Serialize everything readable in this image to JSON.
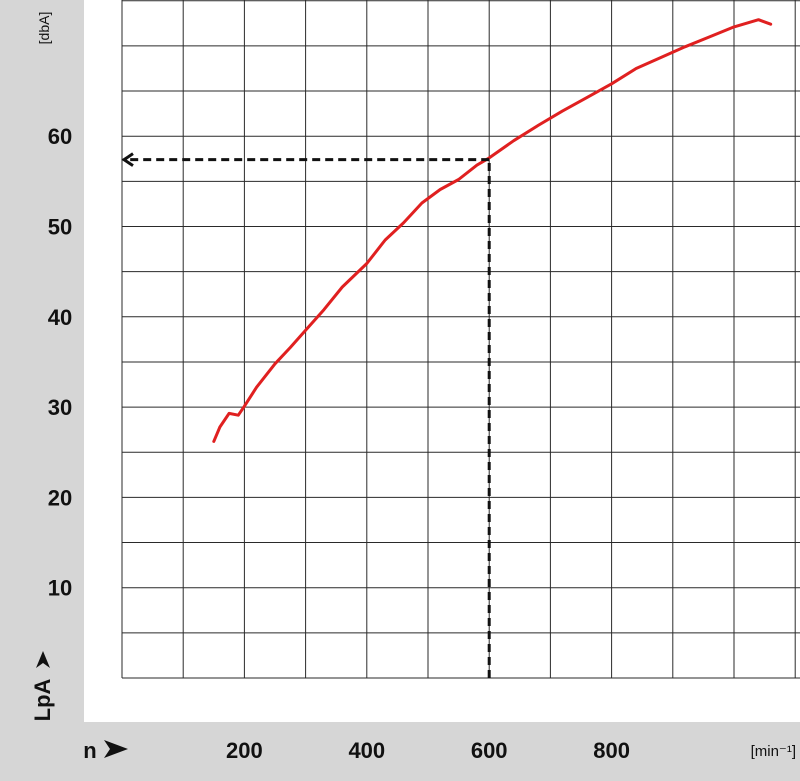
{
  "chart_data": {
    "type": "line",
    "title": "",
    "xlabel": "n",
    "ylabel": "LpA",
    "x_unit": "[min⁻¹]",
    "y_unit": "[dbA]",
    "xlim": [
      0,
      1100
    ],
    "ylim": [
      0,
      72
    ],
    "x_ticks": [
      200,
      400,
      600,
      800
    ],
    "y_ticks": [
      10,
      20,
      30,
      40,
      50,
      60
    ],
    "grid": true,
    "series": [
      {
        "color": "#e02020",
        "x": [
          150,
          160,
          175,
          190,
          200,
          220,
          250,
          275,
          300,
          330,
          360,
          400,
          430,
          460,
          490,
          520,
          550,
          580,
          600,
          640,
          680,
          720,
          760,
          800,
          840,
          880,
          920,
          960,
          1000,
          1040,
          1060
        ],
        "y": [
          26.2,
          27.8,
          29.3,
          29.1,
          30.1,
          32.2,
          34.8,
          36.6,
          38.5,
          40.8,
          43.3,
          45.9,
          48.5,
          50.4,
          52.6,
          54.1,
          55.2,
          56.8,
          57.6,
          59.5,
          61.2,
          62.8,
          64.3,
          65.8,
          67.5,
          68.7,
          69.9,
          71.0,
          72.1,
          72.9,
          72.4
        ]
      }
    ],
    "annotation": {
      "x": 600,
      "y": 57.4,
      "style": "dashed",
      "color": "#111111"
    }
  }
}
